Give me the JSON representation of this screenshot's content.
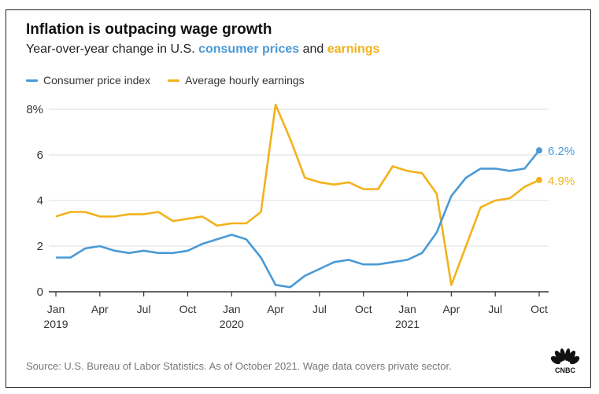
{
  "header": {
    "title": "Inflation is outpacing wage growth",
    "subtitle_prefix": "Year-over-year change in U.S. ",
    "subtitle_cpi": "consumer prices",
    "subtitle_mid": " and ",
    "subtitle_earnings": "earnings"
  },
  "footer": {
    "source": "Source: U.S. Bureau of Labor Statistics. As of October 2021. Wage data covers private sector.",
    "logo_text": "CNBC"
  },
  "chart_data": {
    "type": "line",
    "title": "Inflation is outpacing wage growth",
    "subtitle": "Year-over-year change in U.S. consumer prices and earnings",
    "xlabel": "",
    "ylabel": "",
    "ylim": [
      0,
      8
    ],
    "yticks": [
      0,
      2,
      4,
      6,
      8
    ],
    "ytick_labels": [
      "0",
      "2",
      "4",
      "6",
      "8%"
    ],
    "grid": true,
    "legend_position": "top-left",
    "x_start": "2019-01",
    "x_count": 34,
    "xtick_labels": [
      {
        "index": 0,
        "month": "Jan",
        "year": "2019"
      },
      {
        "index": 3,
        "month": "Apr",
        "year": ""
      },
      {
        "index": 6,
        "month": "Jul",
        "year": ""
      },
      {
        "index": 9,
        "month": "Oct",
        "year": ""
      },
      {
        "index": 12,
        "month": "Jan",
        "year": "2020"
      },
      {
        "index": 15,
        "month": "Apr",
        "year": ""
      },
      {
        "index": 18,
        "month": "Jul",
        "year": ""
      },
      {
        "index": 21,
        "month": "Oct",
        "year": ""
      },
      {
        "index": 24,
        "month": "Jan",
        "year": "2021"
      },
      {
        "index": 27,
        "month": "Apr",
        "year": ""
      },
      {
        "index": 30,
        "month": "Jul",
        "year": ""
      },
      {
        "index": 33,
        "month": "Oct",
        "year": ""
      }
    ],
    "series": [
      {
        "name": "Consumer price index",
        "color": "#4a9ad6",
        "end_label": "6.2%",
        "values": [
          1.5,
          1.5,
          1.9,
          2.0,
          1.8,
          1.7,
          1.8,
          1.7,
          1.7,
          1.8,
          2.1,
          2.3,
          2.5,
          2.3,
          1.5,
          0.3,
          0.2,
          0.7,
          1.0,
          1.3,
          1.4,
          1.2,
          1.2,
          1.3,
          1.4,
          1.7,
          2.6,
          4.2,
          5.0,
          5.4,
          5.4,
          5.3,
          5.4,
          6.2
        ]
      },
      {
        "name": "Average hourly earnings",
        "color": "#f2b21b",
        "end_label": "4.9%",
        "values": [
          3.3,
          3.5,
          3.5,
          3.3,
          3.3,
          3.4,
          3.4,
          3.5,
          3.1,
          3.2,
          3.3,
          2.9,
          3.0,
          3.0,
          3.5,
          8.2,
          6.7,
          5.0,
          4.8,
          4.7,
          4.8,
          4.5,
          4.5,
          5.5,
          5.3,
          5.2,
          4.3,
          0.3,
          2.0,
          3.7,
          4.0,
          4.1,
          4.6,
          4.9
        ]
      }
    ]
  }
}
